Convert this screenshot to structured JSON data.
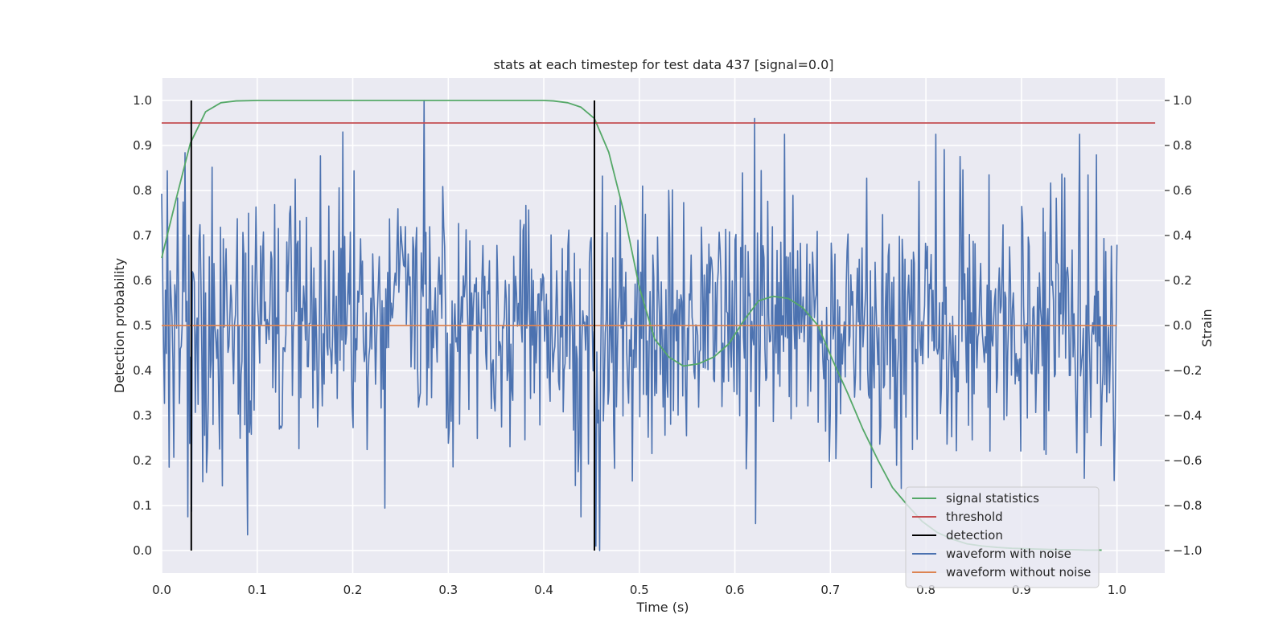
{
  "chart_data": {
    "type": "line",
    "title": "stats at each timestep for test data 437 [signal=0.0]",
    "xlabel": "Time (s)",
    "ylabel_left": "Detection probability",
    "ylabel_right": "Strain",
    "xlim": [
      0.0,
      1.05
    ],
    "ylim_left": [
      -0.05,
      1.05
    ],
    "ylim_right": [
      -1.1,
      1.1
    ],
    "x_ticks": [
      "0.0",
      "0.1",
      "0.2",
      "0.3",
      "0.4",
      "0.5",
      "0.6",
      "0.7",
      "0.8",
      "0.9",
      "1.0"
    ],
    "y_left_ticks": [
      "0.0",
      "0.1",
      "0.2",
      "0.3",
      "0.4",
      "0.5",
      "0.6",
      "0.7",
      "0.8",
      "0.9",
      "1.0"
    ],
    "y_right_ticks": [
      "−1.0",
      "−0.8",
      "−0.6",
      "−0.4",
      "−0.2",
      "0.0",
      "0.2",
      "0.4",
      "0.6",
      "0.8",
      "1.0"
    ],
    "grid": true,
    "legend_position": "lower-right",
    "colors": {
      "signal_statistics": "#55a868",
      "threshold": "#c44e52",
      "detection": "#000000",
      "waveform_with_noise": "#4c72b0",
      "waveform_without_noise": "#dd8452",
      "plot_background": "#eaeaf2",
      "grid": "#ffffff"
    },
    "series": [
      {
        "name": "signal statistics",
        "axis": "left",
        "x": [
          0.0,
          0.015,
          0.03,
          0.046,
          0.062,
          0.078,
          0.1,
          0.2,
          0.3,
          0.4,
          0.41,
          0.425,
          0.439,
          0.453,
          0.468,
          0.484,
          0.5,
          0.516,
          0.531,
          0.546,
          0.562,
          0.578,
          0.594,
          0.609,
          0.625,
          0.64,
          0.656,
          0.671,
          0.687,
          0.703,
          0.718,
          0.734,
          0.75,
          0.765,
          0.781,
          0.796,
          0.812,
          0.828,
          0.843,
          0.859,
          0.875,
          0.89,
          0.906,
          0.921,
          0.937,
          0.953,
          0.968,
          0.984
        ],
        "values": [
          0.65,
          0.78,
          0.905,
          0.975,
          0.995,
          0.999,
          1.0,
          1.0,
          1.0,
          1.0,
          0.999,
          0.995,
          0.985,
          0.96,
          0.885,
          0.75,
          0.585,
          0.47,
          0.43,
          0.41,
          0.415,
          0.43,
          0.46,
          0.51,
          0.555,
          0.565,
          0.56,
          0.54,
          0.5,
          0.42,
          0.35,
          0.27,
          0.2,
          0.14,
          0.1,
          0.065,
          0.04,
          0.025,
          0.015,
          0.01,
          0.007,
          0.005,
          0.004,
          0.003,
          0.002,
          0.002,
          0.001,
          0.001
        ]
      },
      {
        "name": "threshold",
        "axis": "left",
        "x": [
          0.0,
          1.04
        ],
        "values": [
          0.95,
          0.95
        ]
      },
      {
        "name": "detection",
        "axis": "left",
        "type": "vlines",
        "x": [
          0.031,
          0.453
        ],
        "ymin": 0.0,
        "ymax": 1.0
      },
      {
        "name": "waveform with noise",
        "axis": "right",
        "generated": "noise",
        "n_points": 1024,
        "x_range": [
          0.0,
          1.0
        ],
        "std": 0.3,
        "seed": 437,
        "anchors": [
          [
            0.275,
            1.0
          ],
          [
            0.621,
            0.92
          ],
          [
            0.19,
            0.86
          ],
          [
            0.09,
            -0.93
          ],
          [
            0.622,
            -0.88
          ],
          [
            0.455,
            -0.98
          ],
          [
            0.458,
            -1.0
          ]
        ]
      },
      {
        "name": "waveform without noise",
        "axis": "right",
        "x": [
          0.0,
          1.0
        ],
        "values": [
          0.0,
          0.0
        ]
      }
    ],
    "legend": [
      "signal statistics",
      "threshold",
      "detection",
      "waveform with noise",
      "waveform without noise"
    ]
  }
}
